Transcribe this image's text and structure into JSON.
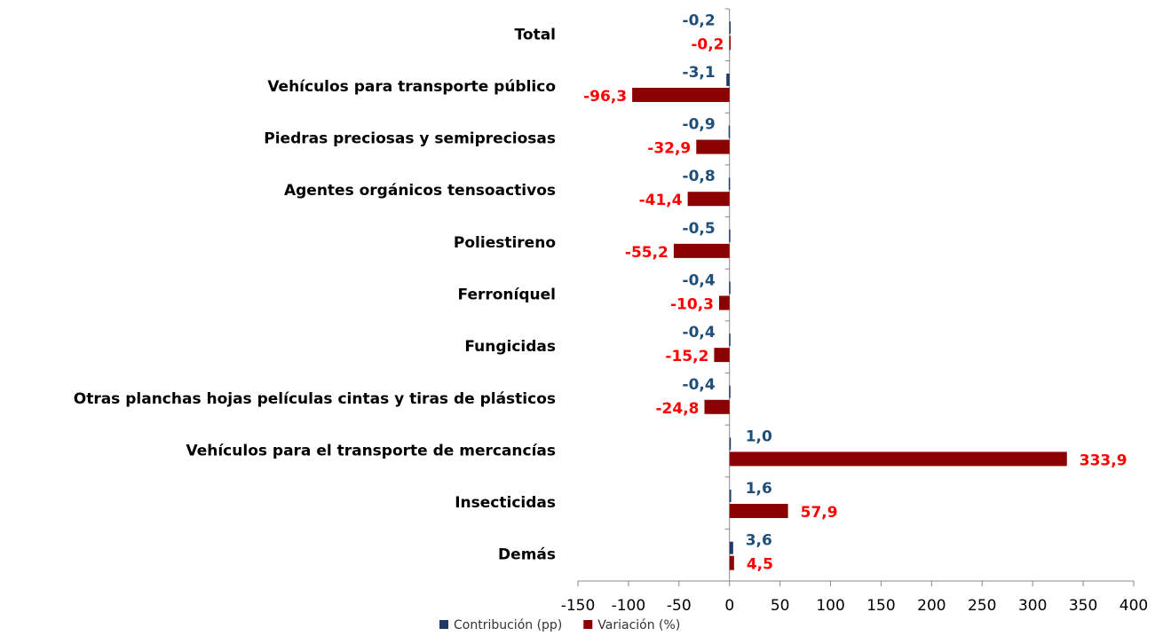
{
  "chart_data": {
    "type": "bar",
    "orientation": "horizontal",
    "categories": [
      "Total",
      "Vehículos para transporte público",
      "Piedras preciosas y semipreciosas",
      "Agentes orgánicos tensoactivos",
      "Poliestireno",
      "Ferroníquel",
      "Fungicidas",
      "Otras planchas hojas películas cintas y tiras de plásticos",
      "Vehículos para el transporte de mercancías",
      "Insecticidas",
      "Demás"
    ],
    "series": [
      {
        "name": "Contribución (pp)",
        "color": "#1f3864",
        "values": [
          -0.2,
          -3.1,
          -0.9,
          -0.8,
          -0.5,
          -0.4,
          -0.4,
          -0.4,
          1.0,
          1.6,
          3.6
        ],
        "value_labels": [
          "-0,2",
          "-3,1",
          "-0,9",
          "-0,8",
          "-0,5",
          "-0,4",
          "-0,4",
          "-0,4",
          "1,0",
          "1,6",
          "3,6"
        ]
      },
      {
        "name": "Variación (%)",
        "color": "#8b0000",
        "values": [
          -0.2,
          -96.3,
          -32.9,
          -41.4,
          -55.2,
          -10.3,
          -15.2,
          -24.8,
          333.9,
          57.9,
          4.5
        ],
        "value_labels": [
          "-0,2",
          "-96,3",
          "-32,9",
          "-41,4",
          "-55,2",
          "-10,3",
          "-15,2",
          "-24,8",
          "333,9",
          "57,9",
          "4,5"
        ]
      }
    ],
    "xlim": [
      -150,
      400
    ],
    "xticks": [
      -150,
      -100,
      -50,
      0,
      50,
      100,
      150,
      200,
      250,
      300,
      350,
      400
    ],
    "legend": "bottom"
  }
}
